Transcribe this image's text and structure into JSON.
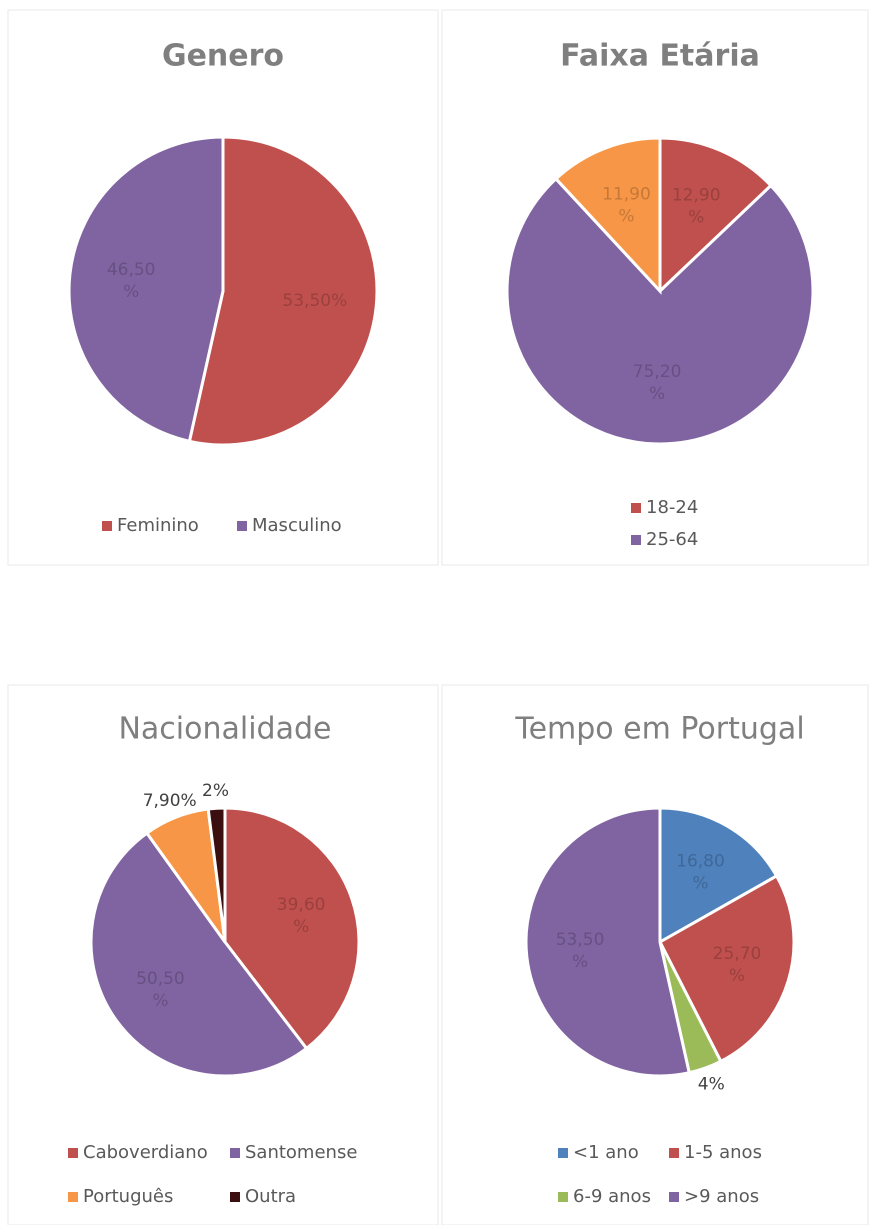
{
  "chart_data": [
    {
      "type": "pie",
      "title": "Genero",
      "title_bold": true,
      "categories": [
        "Feminino",
        "Masculino"
      ],
      "values": [
        53.5,
        46.5
      ],
      "value_labels": [
        "53,50%",
        "46,50 %"
      ],
      "colors": [
        "#c0504d",
        "#8064a2"
      ],
      "legend_columns": 2
    },
    {
      "type": "pie",
      "title": "Faixa Etária",
      "title_bold": true,
      "categories": [
        "18-24",
        "25-64",
        null
      ],
      "values": [
        12.9,
        75.2,
        11.9
      ],
      "value_labels": [
        "12,90 %",
        "75,20 %",
        "11,90 %"
      ],
      "colors": [
        "#c0504d",
        "#8064a2",
        "#f79646"
      ],
      "legend_columns": 1
    },
    {
      "type": "pie",
      "title": "Nacionalidade",
      "title_bold": false,
      "categories": [
        "Caboverdiano",
        "Santomense",
        "Português",
        "Outra"
      ],
      "values": [
        39.6,
        50.5,
        7.9,
        2
      ],
      "value_labels": [
        "39,60 %",
        "50,50 %",
        "7,90%",
        "2%"
      ],
      "colors": [
        "#c0504d",
        "#8064a2",
        "#f79646",
        "#3b0f0f"
      ],
      "legend_columns": 2
    },
    {
      "type": "pie",
      "title": "Tempo em Portugal",
      "title_bold": false,
      "categories": [
        "<1 ano",
        "1-5 anos",
        "6-9 anos",
        ">9 anos"
      ],
      "values": [
        16.8,
        25.7,
        4,
        53.5
      ],
      "value_labels": [
        "16,80 %",
        "25,70 %",
        "4%",
        "53,50 %"
      ],
      "colors": [
        "#4f81bd",
        "#c0504d",
        "#9bbb59",
        "#8064a2"
      ],
      "legend_columns": 2
    }
  ]
}
